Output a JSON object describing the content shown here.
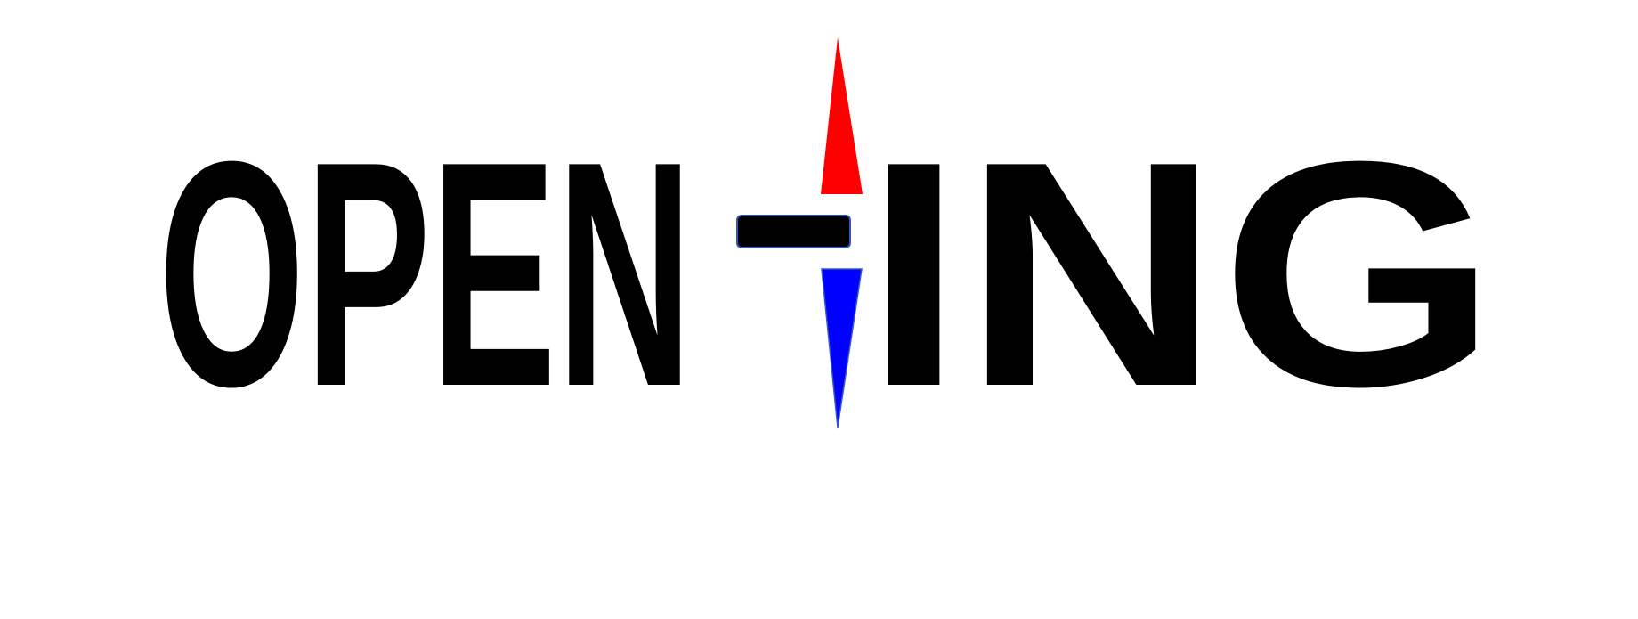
{
  "logo": {
    "text_left": "OPEN",
    "text_right": "ING",
    "colors": {
      "text": "#000000",
      "arrow_up": "#ff0000",
      "arrow_down": "#0000ff",
      "bar": "#000000",
      "bar_outline": "#3355cc",
      "background": "#ffffff"
    },
    "icons": [
      "compass-needle-icon"
    ]
  }
}
